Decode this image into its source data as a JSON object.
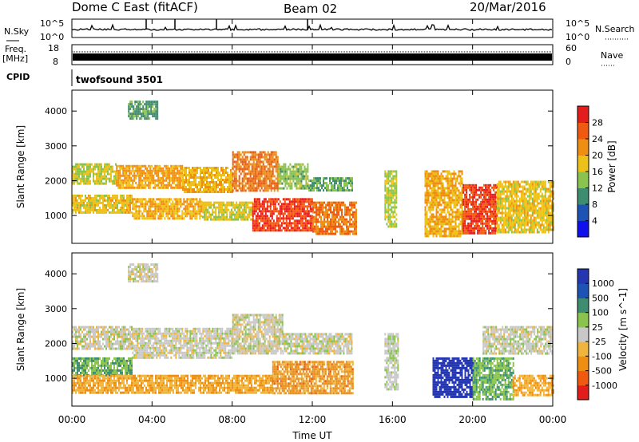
{
  "header": {
    "station": "Dome C East (fitACF)",
    "beam": "Beam 02",
    "date": "20/Mar/2016"
  },
  "left_labels": {
    "nsky": "N.Sky",
    "freq": "Freq.",
    "freq_unit": "[MHz]",
    "cpid": "CPID"
  },
  "right_labels": {
    "nsearch": "N.Search",
    "nave": "Nave"
  },
  "strip_ticks": {
    "noise_left": [
      "10^5",
      "10^0"
    ],
    "noise_right": [
      "10^5",
      "10^0"
    ],
    "freq_left": [
      "18",
      "8"
    ],
    "freq_right": [
      "60",
      "0"
    ]
  },
  "cpid_text": "twofsound 3501",
  "x_axis": {
    "label": "Time UT",
    "ticks": [
      "00:00",
      "04:00",
      "08:00",
      "12:00",
      "16:00",
      "20:00",
      "00:00"
    ]
  },
  "colors": {
    "power": [
      "#1010ee",
      "#1c53b5",
      "#3f8d70",
      "#8ac34e",
      "#ecc21a",
      "#ee8e12",
      "#ef5a10",
      "#e31c1c"
    ],
    "velocity": [
      "#e31c1c",
      "#ef5a10",
      "#ee8e12",
      "#f0b53d",
      "#c8c8c8",
      "#8ac34e",
      "#3f8d70",
      "#1c53b5",
      "#2436b0"
    ]
  },
  "chart_data": [
    {
      "type": "heatmap",
      "name": "power",
      "x_range": [
        0,
        24
      ],
      "ylabel": "Slant Range [km]",
      "y_ticks": [
        1000,
        2000,
        3000,
        4000
      ],
      "ylim": [
        200,
        4600
      ],
      "colorbar_label": "Power [dB]",
      "colorbar_ticks": [
        "28",
        "24",
        "20",
        "16",
        "12",
        "8",
        "4"
      ],
      "colorbar_range": [
        0,
        32
      ],
      "bands": [
        {
          "t0": 0.0,
          "t1": 2.2,
          "r0": 1900,
          "r1": 2500,
          "value": 16
        },
        {
          "t0": 2.2,
          "t1": 5.5,
          "r0": 1800,
          "r1": 2450,
          "value": 21
        },
        {
          "t0": 5.5,
          "t1": 8.0,
          "r0": 1700,
          "r1": 2400,
          "value": 19
        },
        {
          "t0": 8.0,
          "t1": 10.3,
          "r0": 1700,
          "r1": 2850,
          "value": 24
        },
        {
          "t0": 10.3,
          "t1": 11.8,
          "r0": 1800,
          "r1": 2500,
          "value": 14
        },
        {
          "t0": 11.8,
          "t1": 14.0,
          "r0": 1700,
          "r1": 2100,
          "value": 12
        },
        {
          "t0": 0.0,
          "t1": 3.0,
          "r0": 1050,
          "r1": 1600,
          "value": 18
        },
        {
          "t0": 3.0,
          "t1": 6.5,
          "r0": 900,
          "r1": 1500,
          "value": 20
        },
        {
          "t0": 6.5,
          "t1": 9.0,
          "r0": 900,
          "r1": 1400,
          "value": 17
        },
        {
          "t0": 9.0,
          "t1": 12.0,
          "r0": 600,
          "r1": 1500,
          "value": 28
        },
        {
          "t0": 12.0,
          "t1": 14.2,
          "r0": 500,
          "r1": 1400,
          "value": 24
        },
        {
          "t0": 15.6,
          "t1": 16.2,
          "r0": 700,
          "r1": 2300,
          "value": 15
        },
        {
          "t0": 17.6,
          "t1": 19.5,
          "r0": 400,
          "r1": 2300,
          "value": 20
        },
        {
          "t0": 19.5,
          "t1": 21.2,
          "r0": 500,
          "r1": 1900,
          "value": 28
        },
        {
          "t0": 21.2,
          "t1": 24.0,
          "r0": 500,
          "r1": 2000,
          "value": 18
        },
        {
          "t0": 2.8,
          "t1": 4.3,
          "r0": 3800,
          "r1": 4300,
          "value": 11
        }
      ]
    },
    {
      "type": "heatmap",
      "name": "velocity",
      "x_range": [
        0,
        24
      ],
      "ylabel": "Slant Range [km]",
      "y_ticks": [
        1000,
        2000,
        3000,
        4000
      ],
      "ylim": [
        200,
        4600
      ],
      "colorbar_label": "Velocity [m s^-1]",
      "colorbar_ticks": [
        "1000",
        "500",
        "100",
        "25",
        "-25",
        "-100",
        "-500",
        "-1000"
      ],
      "colorbar_range": [
        -1000,
        1000
      ],
      "bands": [
        {
          "t0": 0.0,
          "t1": 3.0,
          "r0": 1850,
          "r1": 2500,
          "value": 0
        },
        {
          "t0": 3.0,
          "t1": 8.0,
          "r0": 1600,
          "r1": 2450,
          "value": 0
        },
        {
          "t0": 8.0,
          "t1": 10.5,
          "r0": 1700,
          "r1": 2850,
          "value": 0
        },
        {
          "t0": 10.5,
          "t1": 14.0,
          "r0": 1700,
          "r1": 2300,
          "value": 0
        },
        {
          "t0": 0.0,
          "t1": 3.0,
          "r0": 1100,
          "r1": 1600,
          "value": 300
        },
        {
          "t0": 0.0,
          "t1": 10.0,
          "r0": 600,
          "r1": 1100,
          "value": -300
        },
        {
          "t0": 10.0,
          "t1": 14.0,
          "r0": 600,
          "r1": 1500,
          "value": -400
        },
        {
          "t0": 18.0,
          "t1": 20.0,
          "r0": 500,
          "r1": 1600,
          "value": 1000
        },
        {
          "t0": 20.0,
          "t1": 22.0,
          "r0": 400,
          "r1": 1600,
          "value": 300
        },
        {
          "t0": 22.0,
          "t1": 24.0,
          "r0": 500,
          "r1": 1100,
          "value": -300
        },
        {
          "t0": 20.5,
          "t1": 24.0,
          "r0": 1700,
          "r1": 2500,
          "value": 0
        },
        {
          "t0": 15.6,
          "t1": 16.3,
          "r0": 700,
          "r1": 2300,
          "value": 60
        },
        {
          "t0": 2.8,
          "t1": 4.3,
          "r0": 3800,
          "r1": 4300,
          "value": 0
        }
      ]
    }
  ]
}
